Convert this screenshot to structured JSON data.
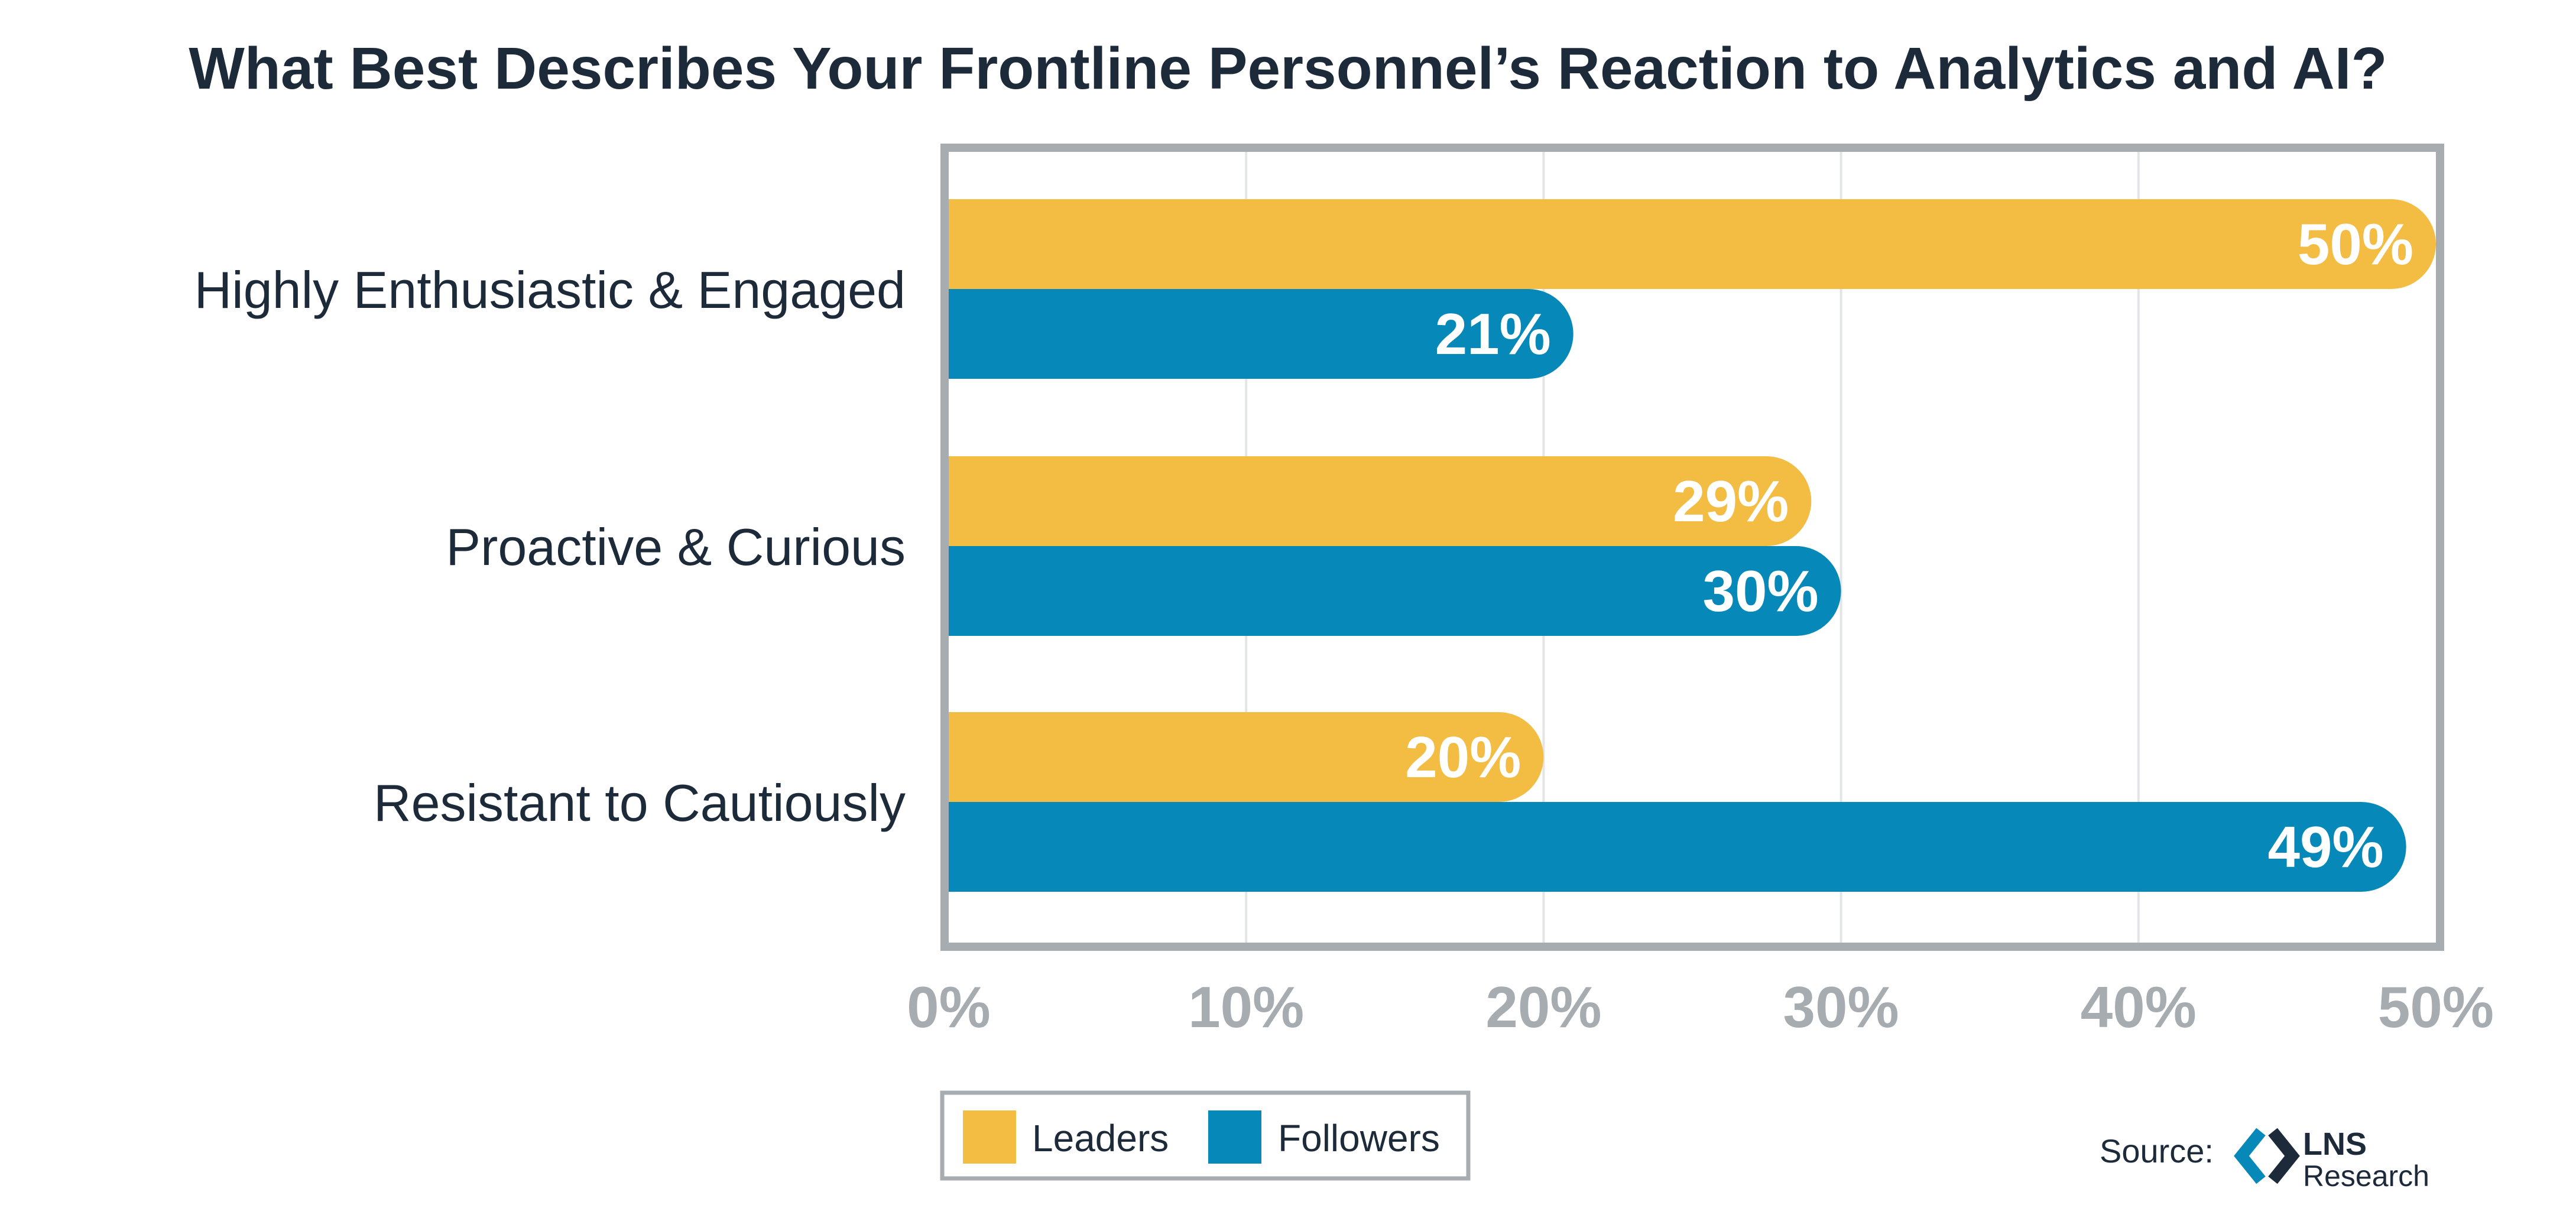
{
  "colors": {
    "leaders": "#F3BC43",
    "followers": "#0688B9",
    "frame": "#A7ACB1",
    "grid": "#E2E4E6",
    "text": "#1D2A3A",
    "tick": "#A7ACB1",
    "value_text": "#FFFFFF"
  },
  "chart_data": {
    "type": "bar",
    "orientation": "horizontal",
    "title": "What Best Describes Your Frontline Personnel’s Reaction to Analytics and AI?",
    "categories": [
      "Highly Enthusiastic & Engaged",
      "Proactive & Curious",
      "Resistant to Cautiously"
    ],
    "series": [
      {
        "name": "Leaders",
        "values": [
          50,
          29,
          20
        ],
        "labels": [
          "50%",
          "29%",
          "20%"
        ]
      },
      {
        "name": "Followers",
        "values": [
          21,
          30,
          49
        ],
        "labels": [
          "21%",
          "30%",
          "49%"
        ]
      }
    ],
    "xlim": [
      0,
      50
    ],
    "ticks": [
      0,
      10,
      20,
      30,
      40,
      50
    ],
    "tick_labels": [
      "0%",
      "10%",
      "20%",
      "30%",
      "40%",
      "50%"
    ],
    "grid": true,
    "legend_position": "bottom-left"
  },
  "source": {
    "label": "Source:",
    "logo_text": "LNS",
    "logo_subtext": "Research",
    "logo_icon": "lns-chevron-logo"
  }
}
